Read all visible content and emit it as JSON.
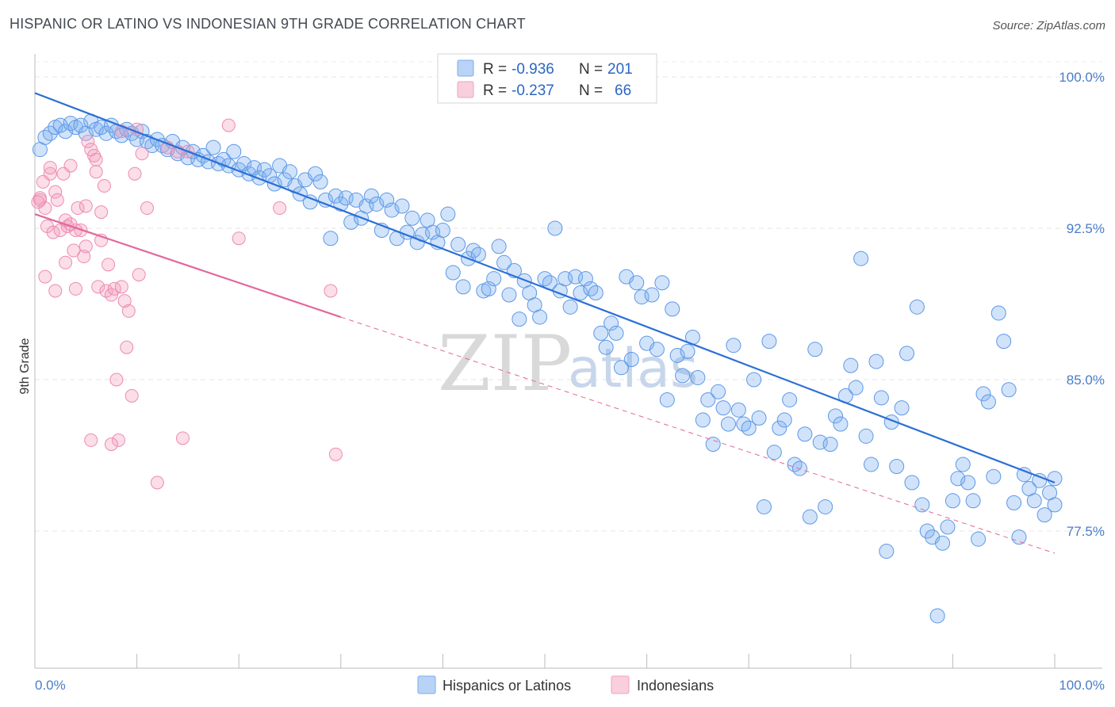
{
  "header": {
    "title": "HISPANIC OR LATINO VS INDONESIAN 9TH GRADE CORRELATION CHART",
    "source": "Source: ZipAtlas.com"
  },
  "watermark": {
    "zip": "ZIP",
    "atlas": "atlas"
  },
  "colors": {
    "blue": "#7aaef0",
    "blue_line": "#2b6fd6",
    "pink": "#f4a0bd",
    "pink_line": "#e2689a",
    "tick": "#4a7cc9"
  },
  "chart_data": {
    "type": "scatter",
    "title": "HISPANIC OR LATINO VS INDONESIAN 9TH GRADE CORRELATION CHART",
    "xlabel": "",
    "ylabel": "9th Grade",
    "xlim": [
      0,
      100
    ],
    "ylim": [
      71.5,
      101.5
    ],
    "x_tick_labels": [
      "0.0%",
      "100.0%"
    ],
    "y_ticks": [
      {
        "value": 100.0,
        "label": "100.0%"
      },
      {
        "value": 92.5,
        "label": "92.5%"
      },
      {
        "value": 85.0,
        "label": "85.0%"
      },
      {
        "value": 77.5,
        "label": "77.5%"
      }
    ],
    "grid": true,
    "legend_placement": "top-center",
    "legend": [
      {
        "r_label": "R =",
        "r": "-0.936",
        "n_label": "N =",
        "n": "201"
      },
      {
        "r_label": "R =",
        "r": "-0.237",
        "n_label": "N =",
        "n": "66"
      }
    ],
    "series": [
      {
        "name": "Hispanics or Latinos",
        "color": "#7aaef0",
        "trend": {
          "x": [
            0,
            100
          ],
          "y": [
            99.2,
            79.9
          ]
        },
        "points": [
          [
            0.5,
            96.4
          ],
          [
            1.0,
            97.0
          ],
          [
            1.5,
            97.2
          ],
          [
            2.0,
            97.5
          ],
          [
            2.5,
            97.6
          ],
          [
            3.0,
            97.3
          ],
          [
            3.5,
            97.7
          ],
          [
            4.0,
            97.5
          ],
          [
            4.5,
            97.6
          ],
          [
            5.0,
            97.2
          ],
          [
            5.5,
            97.8
          ],
          [
            6.0,
            97.4
          ],
          [
            6.5,
            97.5
          ],
          [
            7.0,
            97.2
          ],
          [
            7.5,
            97.6
          ],
          [
            8.0,
            97.3
          ],
          [
            8.5,
            97.1
          ],
          [
            9.0,
            97.4
          ],
          [
            9.5,
            97.2
          ],
          [
            10.0,
            96.9
          ],
          [
            10.5,
            97.3
          ],
          [
            11.0,
            96.8
          ],
          [
            11.5,
            96.6
          ],
          [
            12.0,
            96.9
          ],
          [
            12.5,
            96.6
          ],
          [
            13.0,
            96.4
          ],
          [
            13.5,
            96.8
          ],
          [
            14.0,
            96.2
          ],
          [
            14.5,
            96.5
          ],
          [
            15.0,
            96.0
          ],
          [
            15.5,
            96.3
          ],
          [
            16.0,
            95.9
          ],
          [
            16.5,
            96.1
          ],
          [
            17.0,
            95.8
          ],
          [
            17.5,
            96.5
          ],
          [
            18.0,
            95.7
          ],
          [
            18.5,
            95.9
          ],
          [
            19.0,
            95.6
          ],
          [
            19.5,
            96.3
          ],
          [
            20.0,
            95.4
          ],
          [
            20.5,
            95.7
          ],
          [
            21.0,
            95.2
          ],
          [
            21.5,
            95.5
          ],
          [
            22.0,
            95.0
          ],
          [
            22.5,
            95.4
          ],
          [
            23.0,
            95.1
          ],
          [
            23.5,
            94.7
          ],
          [
            24.0,
            95.6
          ],
          [
            24.5,
            94.9
          ],
          [
            25.0,
            95.3
          ],
          [
            25.5,
            94.6
          ],
          [
            26.0,
            94.2
          ],
          [
            26.5,
            94.9
          ],
          [
            27.0,
            93.8
          ],
          [
            27.5,
            95.2
          ],
          [
            28.0,
            94.8
          ],
          [
            28.5,
            93.9
          ],
          [
            29.0,
            92.0
          ],
          [
            29.5,
            94.1
          ],
          [
            30.0,
            93.7
          ],
          [
            30.5,
            94.0
          ],
          [
            31.0,
            92.8
          ],
          [
            31.5,
            93.9
          ],
          [
            32.0,
            93.0
          ],
          [
            32.5,
            93.6
          ],
          [
            33.0,
            94.1
          ],
          [
            33.5,
            93.7
          ],
          [
            34.0,
            92.4
          ],
          [
            34.5,
            93.9
          ],
          [
            35.0,
            93.4
          ],
          [
            35.5,
            92.0
          ],
          [
            36.0,
            93.6
          ],
          [
            36.5,
            92.3
          ],
          [
            37.0,
            93.0
          ],
          [
            37.5,
            91.8
          ],
          [
            38.0,
            92.2
          ],
          [
            38.5,
            92.9
          ],
          [
            39.0,
            92.3
          ],
          [
            39.5,
            91.8
          ],
          [
            40.0,
            92.4
          ],
          [
            40.5,
            93.2
          ],
          [
            41.0,
            90.3
          ],
          [
            41.5,
            91.7
          ],
          [
            42.0,
            89.6
          ],
          [
            42.5,
            91.0
          ],
          [
            43.0,
            91.4
          ],
          [
            43.5,
            91.2
          ],
          [
            44.0,
            89.4
          ],
          [
            44.5,
            89.5
          ],
          [
            45.0,
            90.0
          ],
          [
            45.5,
            91.6
          ],
          [
            46.0,
            90.8
          ],
          [
            46.5,
            89.2
          ],
          [
            47.0,
            90.4
          ],
          [
            47.5,
            88.0
          ],
          [
            48.0,
            89.9
          ],
          [
            48.5,
            89.3
          ],
          [
            49.0,
            88.7
          ],
          [
            49.5,
            88.1
          ],
          [
            50.0,
            90.0
          ],
          [
            50.5,
            89.8
          ],
          [
            51.0,
            92.5
          ],
          [
            51.5,
            89.4
          ],
          [
            52.0,
            90.0
          ],
          [
            52.5,
            88.6
          ],
          [
            53.0,
            90.1
          ],
          [
            53.5,
            89.3
          ],
          [
            54.0,
            90.0
          ],
          [
            54.5,
            89.5
          ],
          [
            55.0,
            89.3
          ],
          [
            55.5,
            87.3
          ],
          [
            56.0,
            86.6
          ],
          [
            56.5,
            87.8
          ],
          [
            57.0,
            87.3
          ],
          [
            57.5,
            85.6
          ],
          [
            58.0,
            90.1
          ],
          [
            58.5,
            86.0
          ],
          [
            59.0,
            89.8
          ],
          [
            59.5,
            89.1
          ],
          [
            60.0,
            86.8
          ],
          [
            60.5,
            89.2
          ],
          [
            61.0,
            86.5
          ],
          [
            61.5,
            89.8
          ],
          [
            62.0,
            84.0
          ],
          [
            62.5,
            88.5
          ],
          [
            63.0,
            86.2
          ],
          [
            63.5,
            85.2
          ],
          [
            64.0,
            86.4
          ],
          [
            64.5,
            87.1
          ],
          [
            65.0,
            85.1
          ],
          [
            65.5,
            83.0
          ],
          [
            66.0,
            84.0
          ],
          [
            66.5,
            81.8
          ],
          [
            67.0,
            84.4
          ],
          [
            67.5,
            83.6
          ],
          [
            68.0,
            82.8
          ],
          [
            68.5,
            86.7
          ],
          [
            69.0,
            83.5
          ],
          [
            69.5,
            82.8
          ],
          [
            70.0,
            82.6
          ],
          [
            70.5,
            85.0
          ],
          [
            71.0,
            83.1
          ],
          [
            71.5,
            78.7
          ],
          [
            72.0,
            86.9
          ],
          [
            72.5,
            81.4
          ],
          [
            73.0,
            82.6
          ],
          [
            73.5,
            83.0
          ],
          [
            74.0,
            84.0
          ],
          [
            74.5,
            80.8
          ],
          [
            75.0,
            80.6
          ],
          [
            75.5,
            82.3
          ],
          [
            76.0,
            78.2
          ],
          [
            76.5,
            86.5
          ],
          [
            77.0,
            81.9
          ],
          [
            77.5,
            78.7
          ],
          [
            78.0,
            81.8
          ],
          [
            78.5,
            83.2
          ],
          [
            79.0,
            82.8
          ],
          [
            79.5,
            84.2
          ],
          [
            80.0,
            85.7
          ],
          [
            80.5,
            84.6
          ],
          [
            81.0,
            91.0
          ],
          [
            81.5,
            82.2
          ],
          [
            82.0,
            80.8
          ],
          [
            82.5,
            85.9
          ],
          [
            83.0,
            84.1
          ],
          [
            83.5,
            76.5
          ],
          [
            84.0,
            82.9
          ],
          [
            84.5,
            80.7
          ],
          [
            85.0,
            83.6
          ],
          [
            85.5,
            86.3
          ],
          [
            86.0,
            79.9
          ],
          [
            86.5,
            88.6
          ],
          [
            87.0,
            78.8
          ],
          [
            87.5,
            77.5
          ],
          [
            88.0,
            77.2
          ],
          [
            88.5,
            73.3
          ],
          [
            89.0,
            76.9
          ],
          [
            89.5,
            77.7
          ],
          [
            90.0,
            79.0
          ],
          [
            90.5,
            80.1
          ],
          [
            91.0,
            80.8
          ],
          [
            91.5,
            79.9
          ],
          [
            92.0,
            79.0
          ],
          [
            92.5,
            77.1
          ],
          [
            93.0,
            84.3
          ],
          [
            93.5,
            83.9
          ],
          [
            94.0,
            80.2
          ],
          [
            94.5,
            88.3
          ],
          [
            95.0,
            86.9
          ],
          [
            95.5,
            84.5
          ],
          [
            96.0,
            78.9
          ],
          [
            96.5,
            77.2
          ],
          [
            97.0,
            80.3
          ],
          [
            97.5,
            79.6
          ],
          [
            98.0,
            79.0
          ],
          [
            98.5,
            80.0
          ],
          [
            99.0,
            78.3
          ],
          [
            99.5,
            79.4
          ],
          [
            100.0,
            78.8
          ],
          [
            100.0,
            80.1
          ]
        ]
      },
      {
        "name": "Indonesians",
        "color": "#f4a0bd",
        "trend": {
          "x": [
            0,
            30
          ],
          "y": [
            93.2,
            88.1
          ]
        },
        "trend_dashed": {
          "x": [
            30,
            100
          ],
          "y": [
            88.1,
            76.4
          ]
        },
        "points": [
          [
            0.5,
            94.0
          ],
          [
            0.8,
            94.8
          ],
          [
            1.0,
            93.5
          ],
          [
            1.2,
            92.6
          ],
          [
            1.5,
            95.2
          ],
          [
            1.8,
            92.3
          ],
          [
            2.0,
            94.3
          ],
          [
            2.2,
            93.9
          ],
          [
            2.5,
            92.4
          ],
          [
            2.8,
            95.2
          ],
          [
            3.0,
            90.8
          ],
          [
            3.2,
            92.6
          ],
          [
            3.5,
            95.6
          ],
          [
            3.8,
            91.4
          ],
          [
            4.0,
            89.5
          ],
          [
            4.2,
            93.5
          ],
          [
            4.5,
            92.4
          ],
          [
            4.8,
            91.1
          ],
          [
            5.0,
            91.6
          ],
          [
            5.2,
            96.8
          ],
          [
            5.5,
            96.4
          ],
          [
            5.8,
            96.1
          ],
          [
            6.0,
            95.9
          ],
          [
            6.2,
            89.6
          ],
          [
            6.5,
            91.9
          ],
          [
            6.8,
            94.6
          ],
          [
            7.0,
            89.4
          ],
          [
            7.2,
            90.7
          ],
          [
            7.5,
            89.2
          ],
          [
            7.8,
            89.5
          ],
          [
            8.0,
            85.0
          ],
          [
            8.2,
            82.0
          ],
          [
            8.5,
            89.6
          ],
          [
            8.8,
            88.9
          ],
          [
            9.0,
            86.6
          ],
          [
            9.2,
            88.4
          ],
          [
            9.5,
            84.2
          ],
          [
            9.8,
            95.2
          ],
          [
            10.0,
            97.4
          ],
          [
            10.2,
            90.2
          ],
          [
            0.5,
            93.9
          ],
          [
            1.0,
            90.1
          ],
          [
            2.0,
            89.4
          ],
          [
            3.0,
            92.9
          ],
          [
            4.0,
            92.4
          ],
          [
            5.5,
            82.0
          ],
          [
            6.5,
            93.3
          ],
          [
            7.5,
            81.8
          ],
          [
            8.5,
            97.3
          ],
          [
            10.5,
            96.2
          ],
          [
            11.0,
            93.5
          ],
          [
            12.0,
            79.9
          ],
          [
            13.0,
            96.5
          ],
          [
            14.0,
            96.3
          ],
          [
            14.5,
            82.1
          ],
          [
            15.0,
            96.3
          ],
          [
            19.0,
            97.6
          ],
          [
            20.0,
            92.0
          ],
          [
            24.0,
            93.5
          ],
          [
            29.0,
            89.4
          ],
          [
            29.5,
            81.3
          ],
          [
            0.3,
            93.8
          ],
          [
            1.5,
            95.5
          ],
          [
            3.5,
            92.7
          ],
          [
            5.0,
            93.6
          ],
          [
            6.0,
            95.3
          ]
        ]
      }
    ]
  },
  "bottom_legend": [
    {
      "label": "Hispanics or Latinos"
    },
    {
      "label": "Indonesians"
    }
  ]
}
